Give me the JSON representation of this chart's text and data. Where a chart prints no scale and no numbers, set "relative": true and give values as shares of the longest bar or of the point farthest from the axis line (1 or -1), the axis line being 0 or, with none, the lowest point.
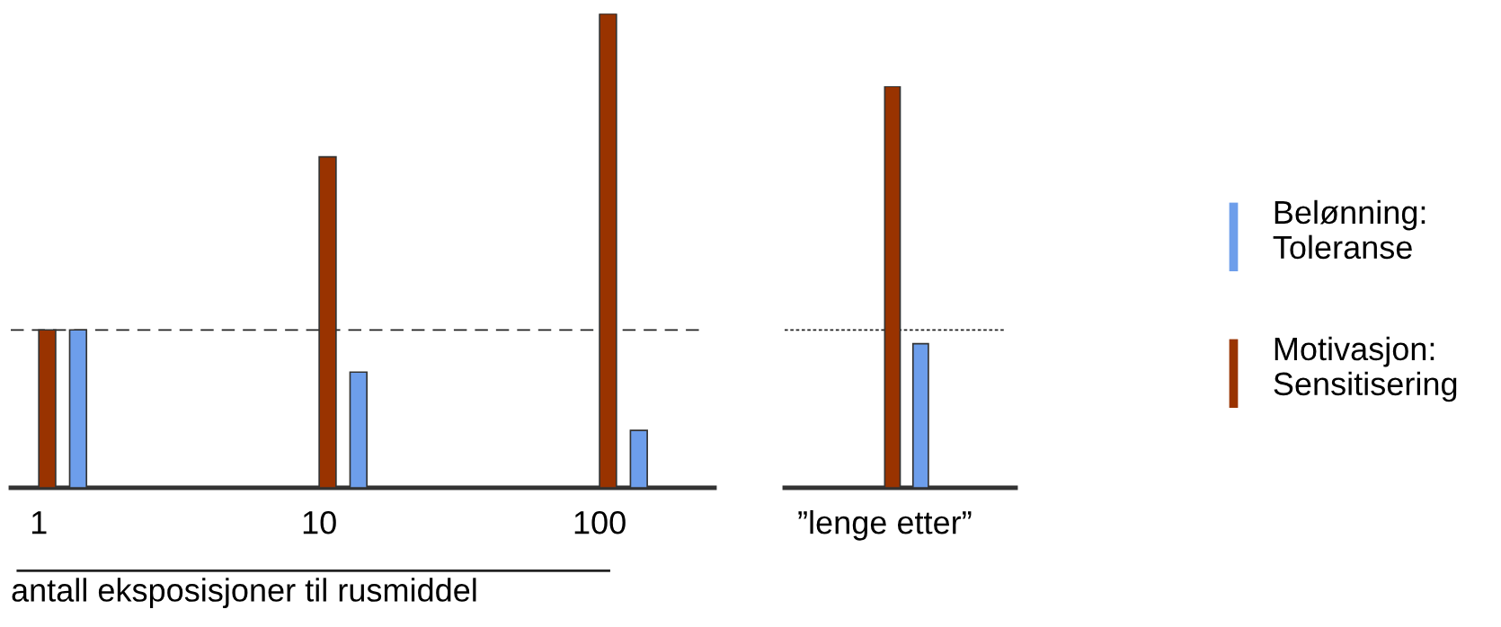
{
  "chart_data": [
    {
      "type": "bar",
      "relative": true,
      "categories": [
        "1",
        "10",
        "100"
      ],
      "xlabel": "antall eksposisjoner til rusmiddel",
      "series": [
        {
          "name": "Motivasjon:\nSensitisering",
          "color": "#993300",
          "values": [
            0.333,
            0.698,
            1
          ]
        },
        {
          "name": "Belønning:\nToleranse",
          "color": "#6d9eeb",
          "values": [
            0.333,
            0.244,
            0.121
          ]
        }
      ],
      "ref_lines": [
        {
          "axis": "y",
          "value": 0.333,
          "line_style": "dashed"
        }
      ],
      "grid": false,
      "legend": "right"
    },
    {
      "type": "bar",
      "relative": true,
      "categories": [
        "”lenge etter”"
      ],
      "series": [
        {
          "color": "#993300",
          "values": [
            1
          ]
        },
        {
          "color": "#6d9eeb",
          "values": [
            0.359
          ]
        }
      ],
      "ref_lines": [
        {
          "axis": "y",
          "value": 0.393,
          "line_style": "dotted"
        }
      ],
      "grid": false
    }
  ]
}
